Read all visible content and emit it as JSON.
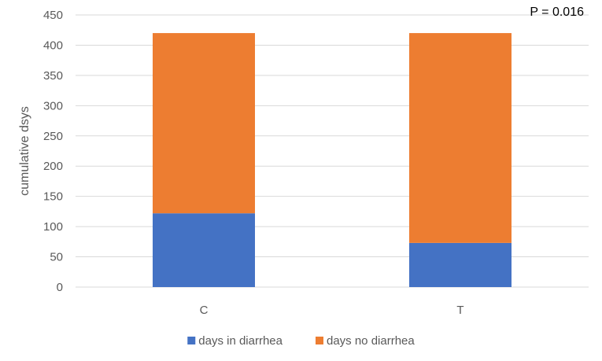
{
  "chart_data": {
    "type": "bar",
    "stacked": true,
    "categories": [
      "C",
      "T"
    ],
    "series": [
      {
        "name": "days in diarrhea",
        "values": [
          122,
          73
        ],
        "color": "#4472C4"
      },
      {
        "name": "days no diarrhea",
        "values": [
          298,
          347
        ],
        "color": "#ED7D31"
      }
    ],
    "ylabel": "cumulative dsys",
    "xlabel": "",
    "ylim": [
      0,
      450
    ],
    "yticks": [
      0,
      50,
      100,
      150,
      200,
      250,
      300,
      350,
      400,
      450
    ],
    "grid": true,
    "gridline_color": "#D9D9D9",
    "legend_position": "bottom",
    "annotation": "P = 0.016"
  }
}
